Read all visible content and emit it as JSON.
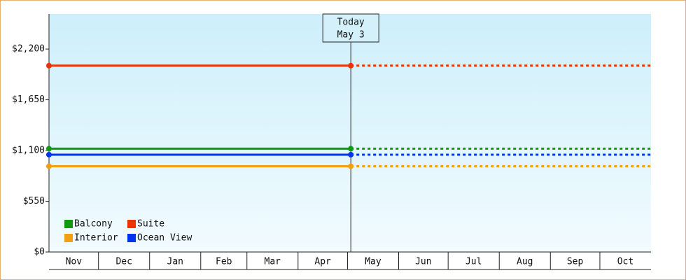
{
  "chart_data": {
    "type": "line",
    "categories": [
      "Nov",
      "Dec",
      "Jan",
      "Feb",
      "Mar",
      "Apr",
      "May",
      "Jun",
      "Jul",
      "Aug",
      "Sep",
      "Oct"
    ],
    "series": [
      {
        "name": "Balcony",
        "color": "#119911",
        "value": 1120
      },
      {
        "name": "Suite",
        "color": "#ee3300",
        "value": 2020
      },
      {
        "name": "Interior",
        "color": "#f0a010",
        "value": 930
      },
      {
        "name": "Ocean View",
        "color": "#0033ee",
        "value": 1055
      }
    ],
    "ylim": [
      0,
      2580
    ],
    "yticks": [
      {
        "value": 0,
        "label": "$0"
      },
      {
        "value": 550,
        "label": "$550"
      },
      {
        "value": 1100,
        "label": "$1,100"
      },
      {
        "value": 1650,
        "label": "$1,650"
      },
      {
        "value": 2200,
        "label": "$2,200"
      }
    ],
    "annotation": {
      "lines": [
        "Today",
        "May 3"
      ]
    },
    "legend": "lower left"
  }
}
